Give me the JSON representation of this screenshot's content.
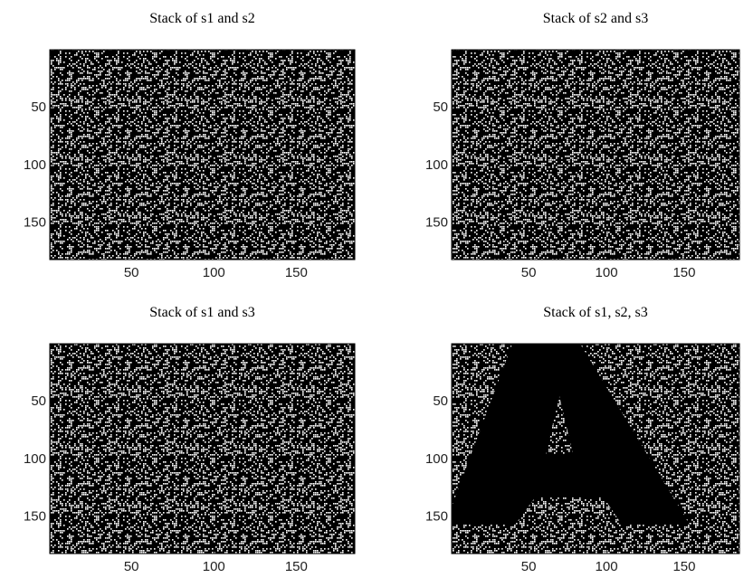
{
  "chart_data": [
    {
      "type": "image",
      "title": "Stack of s1 and s2",
      "xlim": [
        0.5,
        185.5
      ],
      "ylim": [
        0.5,
        182.5
      ],
      "xticks": [
        50,
        100,
        150
      ],
      "yticks": [
        50,
        100,
        150
      ]
    },
    {
      "type": "image",
      "title": "Stack of s2 and s3",
      "xlim": [
        0.5,
        185.5
      ],
      "ylim": [
        0.5,
        182.5
      ],
      "xticks": [
        50,
        100,
        150
      ],
      "yticks": [
        50,
        100,
        150
      ]
    },
    {
      "type": "image",
      "title": "Stack of s1 and s3",
      "xlim": [
        0.5,
        185.5
      ],
      "ylim": [
        0.5,
        182.5
      ],
      "xticks": [
        50,
        100,
        150
      ],
      "yticks": [
        50,
        100,
        150
      ]
    },
    {
      "type": "image",
      "title": "Stack of s1, s2, s3",
      "xlim": [
        0.5,
        185.5
      ],
      "ylim": [
        0.5,
        182.5
      ],
      "xticks": [
        50,
        100,
        150
      ],
      "yticks": [
        50,
        100,
        150
      ]
    }
  ]
}
